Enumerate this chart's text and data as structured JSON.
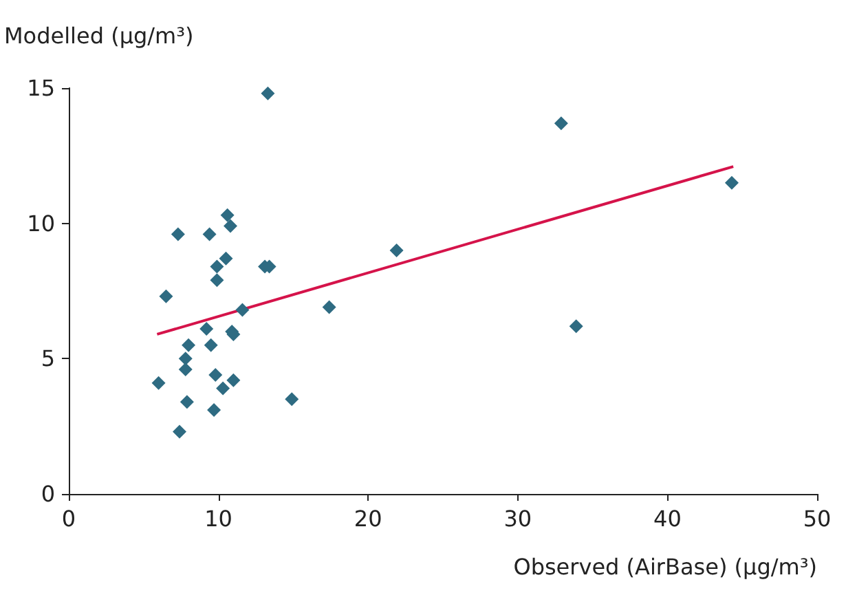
{
  "chart_data": {
    "type": "scatter",
    "xlabel": "Observed (AirBase) (µg/m³)",
    "ylabel": "Modelled (µg/m³)",
    "xlim": [
      0,
      50
    ],
    "xticks": [
      0,
      10,
      20,
      30,
      40,
      50
    ],
    "ylim": [
      0,
      15
    ],
    "yticks": [
      0,
      5,
      10,
      15
    ],
    "grid": false,
    "marker": "diamond",
    "series": [
      {
        "type": "scatter",
        "color": "#2e6b82",
        "x": [
          6.0,
          6.5,
          7.3,
          7.4,
          7.8,
          7.8,
          7.9,
          8.0,
          9.2,
          9.4,
          9.5,
          9.7,
          9.8,
          9.9,
          9.9,
          10.3,
          10.5,
          10.6,
          10.8,
          10.9,
          11.0,
          11.0,
          11.6,
          13.1,
          13.4,
          13.3,
          14.9,
          17.4,
          21.9,
          32.9,
          33.9,
          44.3
        ],
        "values": [
          4.1,
          7.3,
          9.6,
          2.3,
          5.0,
          4.6,
          3.4,
          5.5,
          6.1,
          9.6,
          5.5,
          3.1,
          4.4,
          8.4,
          7.9,
          3.9,
          8.7,
          10.3,
          9.9,
          6.0,
          5.9,
          4.2,
          6.8,
          8.4,
          8.4,
          14.8,
          3.5,
          6.9,
          9.0,
          13.7,
          6.2,
          11.5
        ]
      },
      {
        "type": "line",
        "color": "#d5134a",
        "x": [
          5.9,
          44.4
        ],
        "values": [
          5.9,
          12.1
        ],
        "marker": "none",
        "line_style": "solid"
      }
    ]
  }
}
